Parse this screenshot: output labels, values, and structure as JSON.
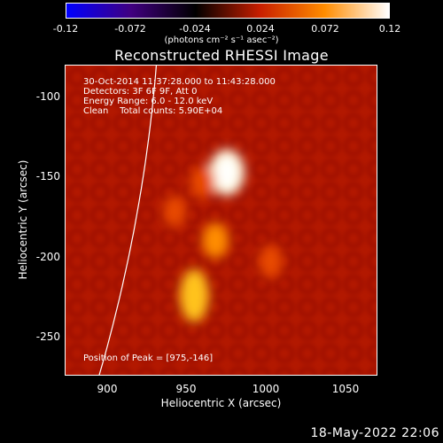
{
  "colorbar": {
    "ticks": [
      "-0.12",
      "-0.072",
      "-0.024",
      "0.024",
      "0.072",
      "0.12"
    ],
    "units": "(photons cm⁻² s⁻¹ asec⁻²)"
  },
  "title": "Reconstructed RHESSI Image",
  "info": {
    "time_range": "30-Oct-2014 11:37:28.000 to 11:43:28.000",
    "detectors": "Detectors: 3F 6F 9F, Att 0",
    "energy": "Energy Range: 6.0 - 12.0 keV",
    "method": "Clean    Total counts: 5.90E+04",
    "peak": "Position of Peak = [975,-146]"
  },
  "chart_data": {
    "type": "heatmap",
    "title": "Reconstructed RHESSI Image",
    "xlabel": "Heliocentric X (arcsec)",
    "ylabel": "Heliocentric Y (arcsec)",
    "xlim": [
      876,
      1068
    ],
    "ylim": [
      -272,
      -80
    ],
    "x_ticks": [
      "900",
      "950",
      "1000",
      "1050"
    ],
    "y_ticks": [
      "-100",
      "-150",
      "-200",
      "-250"
    ],
    "colorbar_range": [
      -0.12,
      0.12
    ],
    "colorbar_ticks": [
      "-0.12",
      "-0.072",
      "-0.024",
      "0.024",
      "0.072",
      "0.12"
    ],
    "colormap": [
      "#0000ff",
      "#400080",
      "#000000",
      "#c81e00",
      "#ff8c00",
      "#ffffff"
    ],
    "peak": [
      975,
      -146
    ],
    "sources": [
      {
        "x": 975,
        "y": -146,
        "intensity": 0.12
      },
      {
        "x": 968,
        "y": -188,
        "intensity": 0.07
      },
      {
        "x": 955,
        "y": -222,
        "intensity": 0.085
      },
      {
        "x": 1002,
        "y": -201,
        "intensity": 0.055
      },
      {
        "x": 943,
        "y": -170,
        "intensity": 0.05
      },
      {
        "x": 960,
        "y": -152,
        "intensity": 0.06
      }
    ]
  },
  "footer": {
    "date": "18-May-2022 22:06"
  }
}
